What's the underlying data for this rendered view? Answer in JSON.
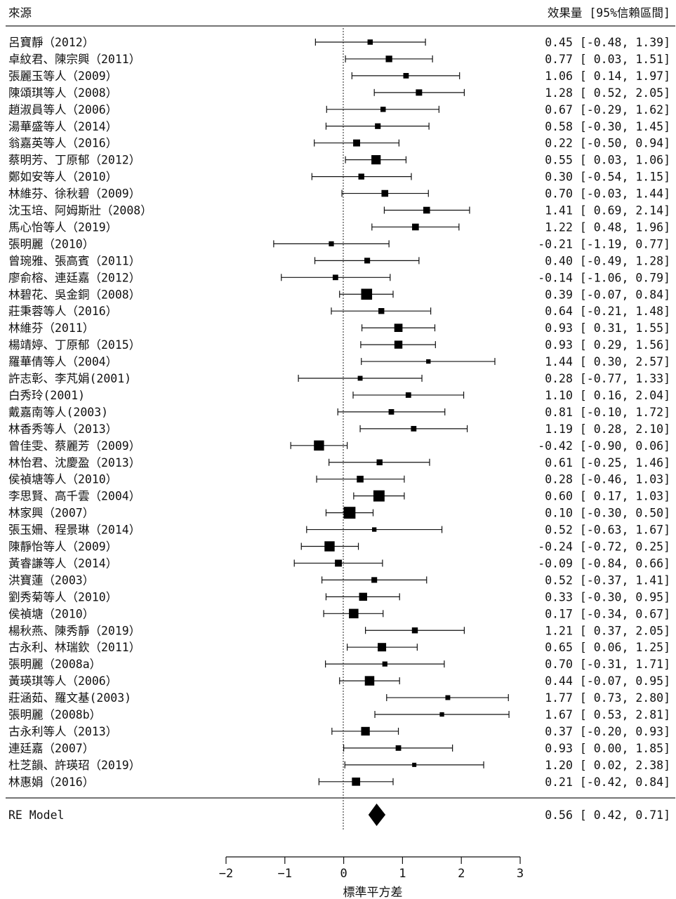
{
  "chart_data": {
    "type": "forest",
    "header_left": "來源",
    "header_right": "效果量 [95%信賴區間]",
    "xlabel": "標準平方差",
    "xlim": [
      -2,
      3
    ],
    "xticks": [
      -2,
      -1,
      0,
      1,
      2,
      3
    ],
    "reference_line": 0,
    "studies": [
      {
        "label": "呂寶靜（2012）",
        "est": 0.45,
        "lo": -0.48,
        "hi": 1.39,
        "text": "0.45 [-0.48, 1.39]",
        "weight": 1.5
      },
      {
        "label": "卓紋君、陳宗興（2011）",
        "est": 0.77,
        "lo": 0.03,
        "hi": 1.51,
        "text": "0.77 [ 0.03, 1.51]",
        "weight": 2.1
      },
      {
        "label": "張麗玉等人（2009）",
        "est": 1.06,
        "lo": 0.14,
        "hi": 1.97,
        "text": "1.06 [ 0.14, 1.97]",
        "weight": 1.6
      },
      {
        "label": "陳頌琪等人（2008）",
        "est": 1.28,
        "lo": 0.52,
        "hi": 2.05,
        "text": "1.28 [ 0.52, 2.05]",
        "weight": 2.0
      },
      {
        "label": "趙淑員等人（2006）",
        "est": 0.67,
        "lo": -0.29,
        "hi": 1.62,
        "text": "0.67 [-0.29, 1.62]",
        "weight": 1.5
      },
      {
        "label": "湯華盛等人（2014）",
        "est": 0.58,
        "lo": -0.3,
        "hi": 1.45,
        "text": "0.58 [-0.30, 1.45]",
        "weight": 1.7
      },
      {
        "label": "翁嘉英等人（2016）",
        "est": 0.22,
        "lo": -0.5,
        "hi": 0.94,
        "text": "0.22 [-0.50, 0.94]",
        "weight": 2.3
      },
      {
        "label": "蔡明芳、丁原郁（2012）",
        "est": 0.55,
        "lo": 0.03,
        "hi": 1.06,
        "text": "0.55 [ 0.03, 1.06]",
        "weight": 3.4
      },
      {
        "label": "鄭如安等人（2010）",
        "est": 0.3,
        "lo": -0.54,
        "hi": 1.15,
        "text": "0.30 [-0.54, 1.15]",
        "weight": 1.8
      },
      {
        "label": "林維芬、徐秋碧（2009）",
        "est": 0.7,
        "lo": -0.03,
        "hi": 1.44,
        "text": "0.70 [-0.03, 1.44]",
        "weight": 2.2
      },
      {
        "label": "沈玉培、阿姆斯壯（2008）",
        "est": 1.41,
        "lo": 0.69,
        "hi": 2.14,
        "text": "1.41 [ 0.69, 2.14]",
        "weight": 2.2
      },
      {
        "label": "馬心怡等人（2019）",
        "est": 1.22,
        "lo": 0.48,
        "hi": 1.96,
        "text": "1.22 [ 0.48, 1.96]",
        "weight": 2.2
      },
      {
        "label": "張明麗（2010）",
        "est": -0.21,
        "lo": -1.19,
        "hi": 0.77,
        "text": "-0.21 [-1.19, 0.77]",
        "weight": 1.4
      },
      {
        "label": "曾琬雅、張高賓（2011）",
        "est": 0.4,
        "lo": -0.49,
        "hi": 1.28,
        "text": "0.40 [-0.49, 1.28]",
        "weight": 1.7
      },
      {
        "label": "廖俞榕、連廷嘉（2012）",
        "est": -0.14,
        "lo": -1.06,
        "hi": 0.79,
        "text": "-0.14 [-1.06, 0.79]",
        "weight": 1.6
      },
      {
        "label": "林碧花、吳金銅（2008）",
        "est": 0.39,
        "lo": -0.07,
        "hi": 0.84,
        "text": "0.39 [-0.07, 0.84]",
        "weight": 4.2
      },
      {
        "label": "莊秉蓉等人（2016）",
        "est": 0.64,
        "lo": -0.21,
        "hi": 1.48,
        "text": "0.64 [-0.21, 1.48]",
        "weight": 1.8
      },
      {
        "label": "林維芬（2011）",
        "est": 0.93,
        "lo": 0.31,
        "hi": 1.55,
        "text": "0.93 [ 0.31, 1.55]",
        "weight": 2.9
      },
      {
        "label": "楊靖婷、丁原郁（2015）",
        "est": 0.93,
        "lo": 0.29,
        "hi": 1.56,
        "text": "0.93 [ 0.29, 1.56]",
        "weight": 2.8
      },
      {
        "label": "羅華倩等人（2004）",
        "est": 1.44,
        "lo": 0.3,
        "hi": 2.57,
        "text": "1.44 [ 0.30, 2.57]",
        "weight": 1.1
      },
      {
        "label": "許志彰、李芃娟(2001)",
        "est": 0.28,
        "lo": -0.77,
        "hi": 1.33,
        "text": "0.28 [-0.77, 1.33]",
        "weight": 1.3
      },
      {
        "label": "白秀玲(2001)",
        "est": 1.1,
        "lo": 0.16,
        "hi": 2.04,
        "text": "1.10 [ 0.16, 2.04]",
        "weight": 1.6
      },
      {
        "label": "戴嘉南等人(2003)",
        "est": 0.81,
        "lo": -0.1,
        "hi": 1.72,
        "text": "0.81 [-0.10, 1.72]",
        "weight": 1.6
      },
      {
        "label": "林香秀等人（2013）",
        "est": 1.19,
        "lo": 0.28,
        "hi": 2.1,
        "text": "1.19 [ 0.28, 2.10]",
        "weight": 1.6
      },
      {
        "label": "曾佳雯、蔡麗芳（2009）",
        "est": -0.42,
        "lo": -0.9,
        "hi": 0.06,
        "text": "-0.42 [-0.90, 0.06]",
        "weight": 3.8
      },
      {
        "label": "林怡君、沈慶盈（2013）",
        "est": 0.61,
        "lo": -0.25,
        "hi": 1.46,
        "text": "0.61 [-0.25, 1.46]",
        "weight": 1.8
      },
      {
        "label": "侯禎塘等人（2010）",
        "est": 0.28,
        "lo": -0.46,
        "hi": 1.03,
        "text": "0.28 [-0.46, 1.03]",
        "weight": 2.2
      },
      {
        "label": "李思賢、高千雲（2004）",
        "est": 0.6,
        "lo": 0.17,
        "hi": 1.03,
        "text": "0.60 [ 0.17, 1.03]",
        "weight": 4.3
      },
      {
        "label": "林家興（2007）",
        "est": 0.1,
        "lo": -0.3,
        "hi": 0.5,
        "text": "0.10 [-0.30, 0.50]",
        "weight": 4.6
      },
      {
        "label": "張玉姍、程景琳（2014）",
        "est": 0.52,
        "lo": -0.63,
        "hi": 1.67,
        "text": "0.52 [-0.63, 1.67]",
        "weight": 1.1
      },
      {
        "label": "陳靜怡等人（2009）",
        "est": -0.24,
        "lo": -0.72,
        "hi": 0.25,
        "text": "-0.24 [-0.72, 0.25]",
        "weight": 3.8
      },
      {
        "label": "黃睿謙等人（2014）",
        "est": -0.09,
        "lo": -0.84,
        "hi": 0.66,
        "text": "-0.09 [-0.84, 0.66]",
        "weight": 2.3
      },
      {
        "label": "洪寶蓮（2003）",
        "est": 0.52,
        "lo": -0.37,
        "hi": 1.41,
        "text": "0.52 [-0.37, 1.41]",
        "weight": 1.7
      },
      {
        "label": "劉秀菊等人（2010）",
        "est": 0.33,
        "lo": -0.3,
        "hi": 0.95,
        "text": "0.33 [-0.30, 0.95]",
        "weight": 2.8
      },
      {
        "label": "侯禎塘（2010）",
        "est": 0.17,
        "lo": -0.34,
        "hi": 0.67,
        "text": "0.17 [-0.34, 0.67]",
        "weight": 3.5
      },
      {
        "label": "楊秋燕、陳秀靜（2019）",
        "est": 1.21,
        "lo": 0.37,
        "hi": 2.05,
        "text": "1.21 [ 0.37, 2.05]",
        "weight": 1.8
      },
      {
        "label": "古永利、林瑞欽（2011）",
        "est": 0.65,
        "lo": 0.06,
        "hi": 1.25,
        "text": "0.65 [ 0.06, 1.25]",
        "weight": 3.0
      },
      {
        "label": "張明麗（2008a）",
        "est": 0.7,
        "lo": -0.31,
        "hi": 1.71,
        "text": "0.70 [-0.31, 1.71]",
        "weight": 1.4
      },
      {
        "label": "黃瑛琪等人（2006）",
        "est": 0.44,
        "lo": -0.07,
        "hi": 0.95,
        "text": "0.44 [-0.07, 0.95]",
        "weight": 3.5
      },
      {
        "label": "莊涵茹、羅文基(2003)",
        "est": 1.77,
        "lo": 0.73,
        "hi": 2.8,
        "text": "1.77 [ 0.73, 2.80]",
        "weight": 1.3
      },
      {
        "label": "張明麗（2008b）",
        "est": 1.67,
        "lo": 0.53,
        "hi": 2.81,
        "text": "1.67 [ 0.53, 2.81]",
        "weight": 1.1
      },
      {
        "label": "古永利等人（2013）",
        "est": 0.37,
        "lo": -0.2,
        "hi": 0.93,
        "text": "0.37 [-0.20, 0.93]",
        "weight": 3.1
      },
      {
        "label": "連廷嘉（2007）",
        "est": 0.93,
        "lo": 0.0,
        "hi": 1.85,
        "text": "0.93 [ 0.00, 1.85]",
        "weight": 1.6
      },
      {
        "label": "杜芝韻、許瑛玿（2019）",
        "est": 1.2,
        "lo": 0.02,
        "hi": 2.38,
        "text": "1.20 [ 0.02, 2.38]",
        "weight": 1.0
      },
      {
        "label": "林惠娟（2016）",
        "est": 0.21,
        "lo": -0.42,
        "hi": 0.84,
        "text": "0.21 [-0.42, 0.84]",
        "weight": 2.9
      }
    ],
    "summary": {
      "label": "RE Model",
      "est": 0.56,
      "lo": 0.42,
      "hi": 0.71,
      "text": "0.56 [ 0.42, 0.71]"
    }
  }
}
